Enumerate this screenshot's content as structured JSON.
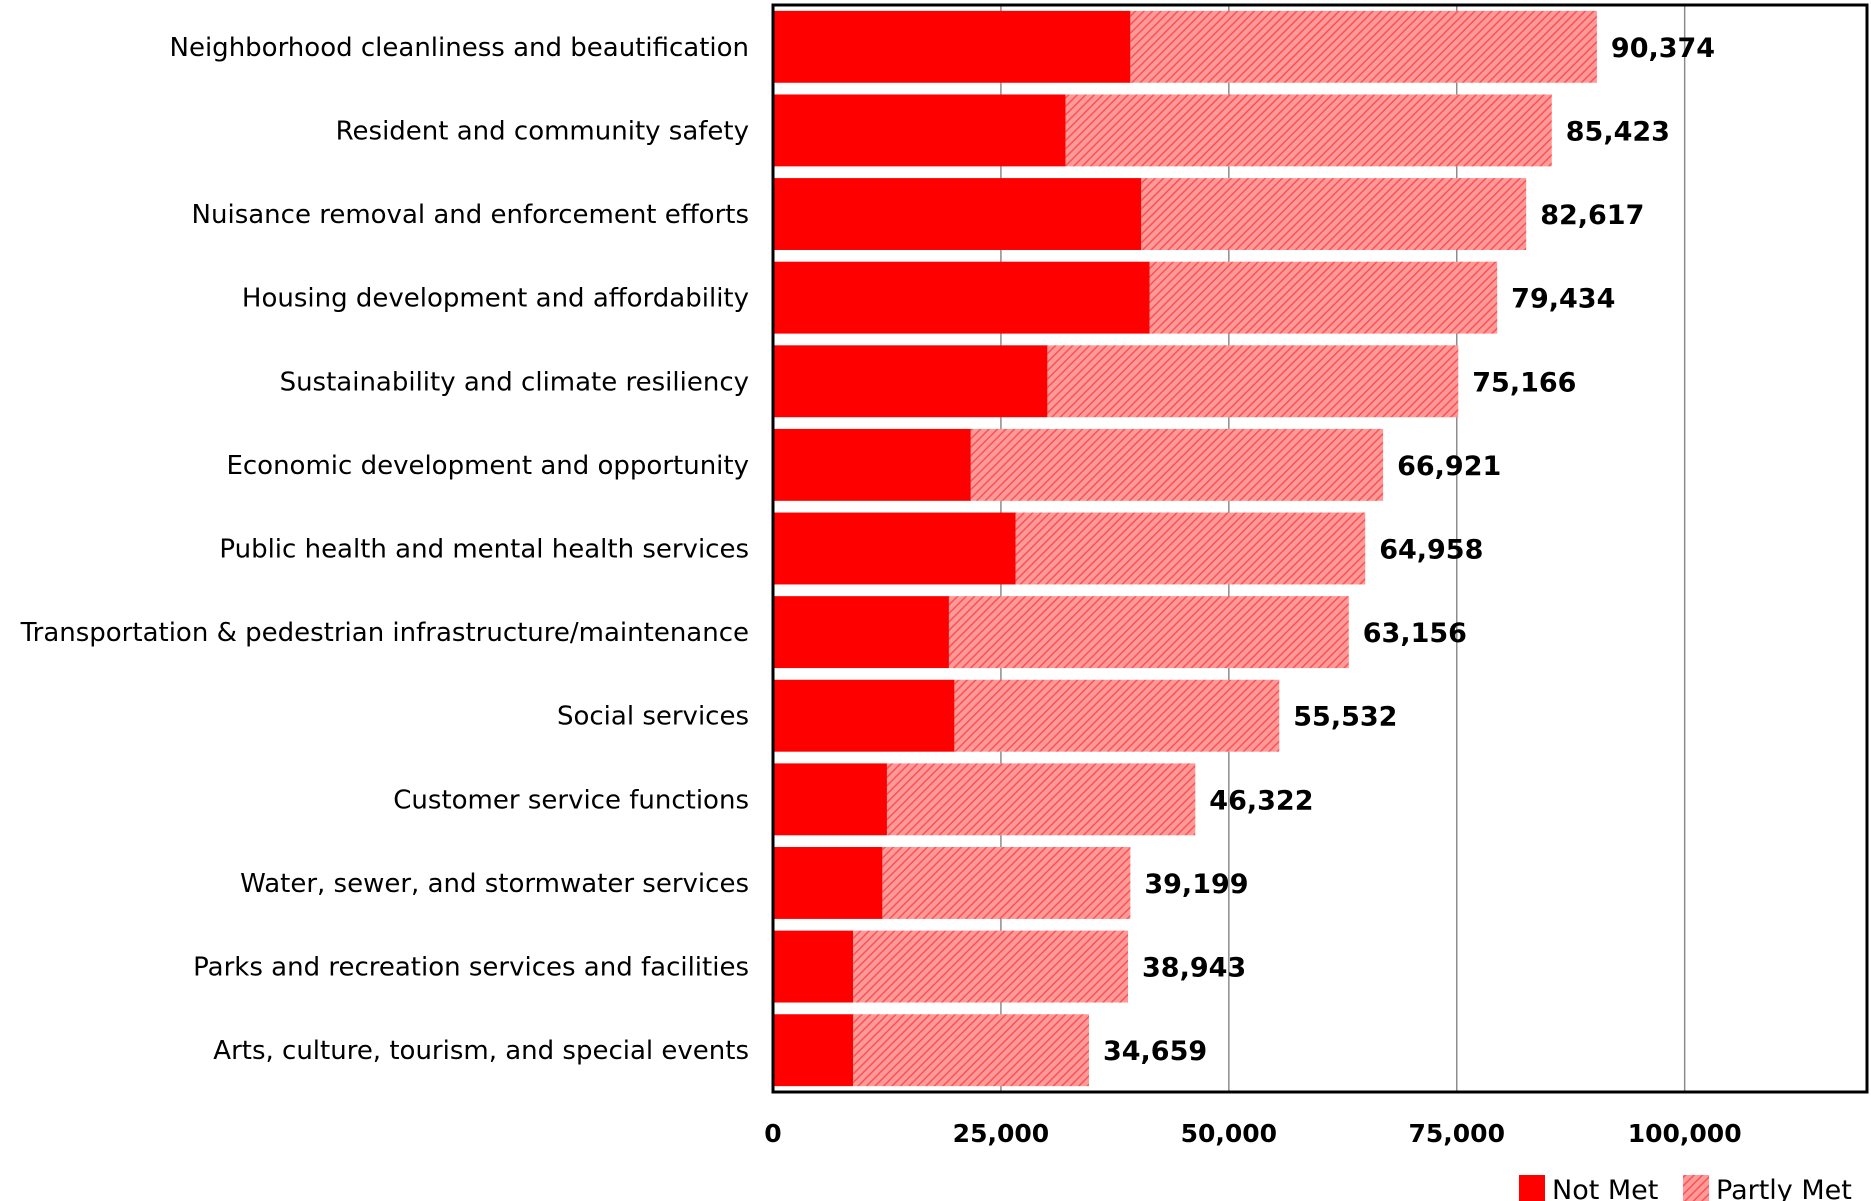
{
  "chart_data": {
    "type": "bar",
    "orientation": "horizontal",
    "stacked": true,
    "categories": [
      "Neighborhood cleanliness and beautification",
      "Resident and community safety",
      "Nuisance removal and enforcement efforts",
      "Housing development and affordability",
      "Sustainability and climate resiliency",
      "Economic development and opportunity",
      "Public health and mental health services",
      "Transportation & pedestrian infrastructure/maintenance",
      "Social services",
      "Customer service functions",
      "Water, sewer, and stormwater services",
      "Parks and recreation services and facilities",
      "Arts, culture, tourism, and special events"
    ],
    "series": [
      {
        "name": "Not Met",
        "color": "#ff0000",
        "pattern": "solid",
        "values": [
          39200,
          32100,
          40400,
          41300,
          30100,
          21700,
          26600,
          19300,
          19900,
          12500,
          12000,
          8800,
          8800
        ]
      },
      {
        "name": "Partly Met",
        "color": "#ff6b6b",
        "pattern": "diagonal-hatch",
        "values": [
          51174,
          53323,
          42217,
          38134,
          45066,
          45221,
          38358,
          43856,
          35632,
          33822,
          27199,
          30143,
          25859
        ]
      }
    ],
    "totals": [
      90374,
      85423,
      82617,
      79434,
      75166,
      66921,
      64958,
      63156,
      55532,
      46322,
      39199,
      38943,
      34659
    ],
    "total_labels": [
      "90,374",
      "85,423",
      "82,617",
      "79,434",
      "75,166",
      "66,921",
      "64,958",
      "63,156",
      "55,532",
      "46,322",
      "39,199",
      "38,943",
      "34,659"
    ],
    "xlim": [
      0,
      120000
    ],
    "xticks": [
      0,
      25000,
      50000,
      75000,
      100000
    ],
    "xtick_labels": [
      "0",
      "25,000",
      "50,000",
      "75,000",
      "100,000"
    ],
    "grid": "vertical",
    "legend": "bottom-right",
    "title": "",
    "xlabel": "",
    "ylabel": ""
  }
}
